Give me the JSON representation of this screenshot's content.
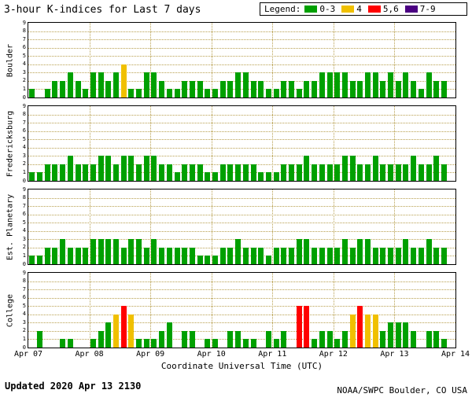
{
  "labels": {
    "legend": "Legend:"
  },
  "footer": {
    "updated": "Updated 2020 Apr 13 2130",
    "credit": "NOAA/SWPC Boulder, CO USA"
  },
  "chart_data": {
    "type": "bar",
    "title": "3-hour K-indices for Last 7 days",
    "xlabel": "Coordinate Universal Time (UTC)",
    "x_tick_labels": [
      "Apr 07",
      "Apr 08",
      "Apr 09",
      "Apr 10",
      "Apr 11",
      "Apr 12",
      "Apr 13",
      "Apr 14"
    ],
    "ylim": [
      0,
      9
    ],
    "y_ticks": [
      0,
      1,
      2,
      3,
      4,
      5,
      6,
      7,
      8,
      9
    ],
    "bars_per_day": 8,
    "grid": "dotted",
    "legend_position": "top-right",
    "legend": [
      {
        "label": "0-3",
        "color": "#00a000"
      },
      {
        "label": "4",
        "color": "#f0c000"
      },
      {
        "label": "5,6",
        "color": "#ff0000"
      },
      {
        "label": "7-9",
        "color": "#4b0082"
      }
    ],
    "series": [
      {
        "name": "Boulder",
        "values": [
          1,
          0,
          1,
          2,
          2,
          3,
          2,
          1,
          3,
          3,
          2,
          3,
          4,
          1,
          1,
          3,
          3,
          2,
          1,
          1,
          2,
          2,
          2,
          1,
          1,
          2,
          2,
          3,
          3,
          2,
          2,
          1,
          1,
          2,
          2,
          1,
          2,
          2,
          3,
          3,
          3,
          3,
          2,
          2,
          3,
          3,
          2,
          3,
          2,
          3,
          2,
          1,
          3,
          2,
          2
        ]
      },
      {
        "name": "Fredericksburg",
        "values": [
          1,
          1,
          2,
          2,
          2,
          3,
          2,
          2,
          2,
          3,
          3,
          2,
          3,
          3,
          2,
          3,
          3,
          2,
          2,
          1,
          2,
          2,
          2,
          1,
          1,
          2,
          2,
          2,
          2,
          2,
          1,
          1,
          1,
          2,
          2,
          2,
          3,
          2,
          2,
          2,
          2,
          3,
          3,
          2,
          2,
          3,
          2,
          2,
          2,
          2,
          3,
          2,
          2,
          3,
          2
        ]
      },
      {
        "name": "Est. Planetary",
        "values": [
          1,
          1,
          2,
          2,
          3,
          2,
          2,
          2,
          3,
          3,
          3,
          3,
          2,
          3,
          3,
          2,
          3,
          2,
          2,
          2,
          2,
          2,
          1,
          1,
          1,
          2,
          2,
          3,
          2,
          2,
          2,
          1,
          2,
          2,
          2,
          3,
          3,
          2,
          2,
          2,
          2,
          3,
          2,
          3,
          3,
          2,
          2,
          2,
          2,
          3,
          2,
          2,
          3,
          2,
          2
        ]
      },
      {
        "name": "College",
        "values": [
          0,
          2,
          0,
          0,
          1,
          1,
          0,
          0,
          1,
          2,
          3,
          4,
          5,
          4,
          1,
          1,
          1,
          2,
          3,
          0,
          2,
          2,
          0,
          1,
          1,
          0,
          2,
          2,
          1,
          1,
          0,
          2,
          1,
          2,
          0,
          5,
          5,
          1,
          2,
          2,
          1,
          2,
          4,
          5,
          4,
          4,
          2,
          3,
          3,
          3,
          2,
          0,
          2,
          2,
          1
        ]
      }
    ]
  }
}
